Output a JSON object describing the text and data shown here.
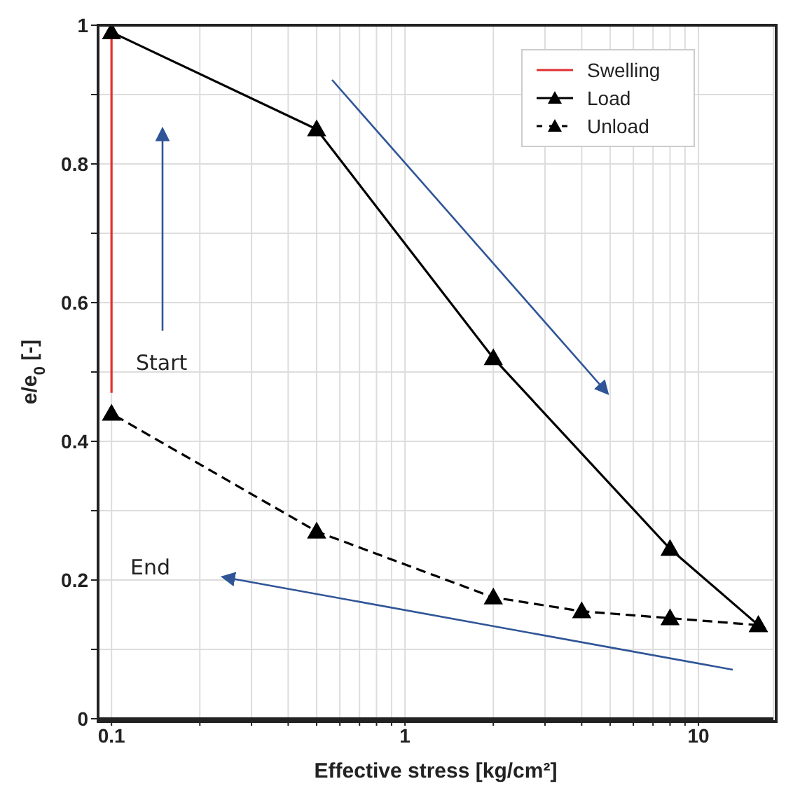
{
  "chart_data": {
    "type": "line",
    "xlabel": "Effective stress [kg/cm²]",
    "ylabel": "e/e$_{0}$ [-]",
    "log": "x",
    "xlim": [
      0.09,
      18
    ],
    "ylim": [
      0,
      1
    ],
    "xticks": [
      0.1,
      {
        "value": 0.2,
        "label": null
      },
      {
        "value": 0.3,
        "label": null
      },
      {
        "value": 0.4,
        "label": null
      },
      {
        "value": 0.5,
        "label": null
      },
      {
        "value": 0.6,
        "label": null
      },
      {
        "value": 0.7,
        "label": null
      },
      {
        "value": 0.8,
        "label": null
      },
      {
        "value": 0.9,
        "label": null
      },
      1,
      {
        "value": 2,
        "label": null
      },
      {
        "value": 3,
        "label": null
      },
      {
        "value": 4,
        "label": null
      },
      {
        "value": 5,
        "label": null
      },
      {
        "value": 6,
        "label": null
      },
      {
        "value": 7,
        "label": null
      },
      {
        "value": 8,
        "label": null
      },
      {
        "value": 9,
        "label": null
      },
      10
    ],
    "yticks": [
      0,
      {
        "value": 0.1,
        "label": null
      },
      0.2,
      {
        "value": 0.3,
        "label": null
      },
      0.4,
      {
        "value": 0.5,
        "label": null
      },
      0.6,
      {
        "value": 0.7,
        "label": null
      },
      0.8,
      {
        "value": 0.9,
        "label": null
      },
      1
    ],
    "grid": true,
    "legend": "top right",
    "series": [
      {
        "name": "Swelling",
        "color": "#e03030",
        "x": [
          0.1,
          0.1
        ],
        "values": [
          0.47,
          0.99
        ],
        "marker": "none",
        "line_style": "solid"
      },
      {
        "name": "Load",
        "color": "#000000",
        "x": [
          0.1,
          0.5,
          2,
          8,
          16
        ],
        "values": [
          0.99,
          0.85,
          0.52,
          0.245,
          0.135
        ],
        "marker": "triangle",
        "line_style": "solid"
      },
      {
        "name": "Unload",
        "color": "#000000",
        "x": [
          16,
          8,
          4,
          2,
          0.5,
          0.1
        ],
        "values": [
          0.135,
          0.145,
          0.155,
          0.175,
          0.27,
          0.44
        ],
        "marker": "triangle",
        "line_style": "dashed"
      }
    ],
    "annotations": [
      "Start",
      "End"
    ]
  }
}
